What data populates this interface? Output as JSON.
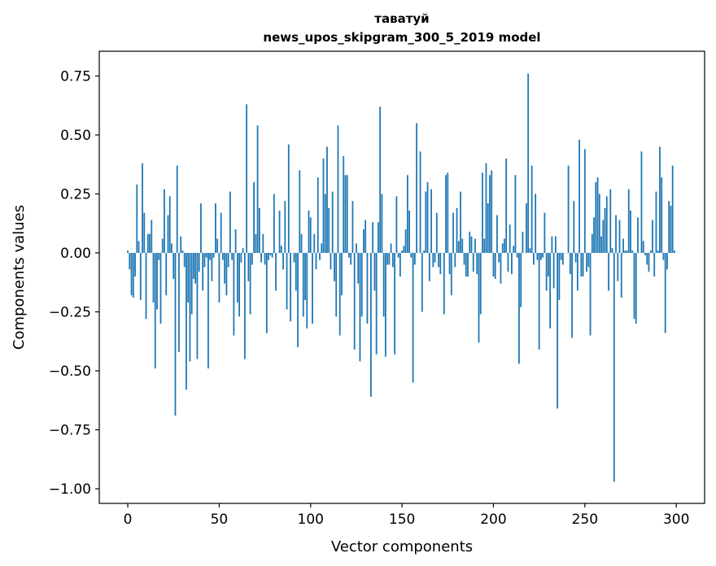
{
  "chart_data": {
    "type": "bar",
    "title": "таватуй",
    "subtitle": "news_upos_skipgram_300_5_2019 model",
    "xlabel": "Vector components",
    "ylabel": "Components values",
    "xlim": [
      -15.6,
      315.5
    ],
    "ylim": [
      -1.062,
      0.855
    ],
    "xticks": [
      0,
      50,
      100,
      150,
      200,
      250,
      300
    ],
    "xtick_labels": [
      "0",
      "50",
      "100",
      "150",
      "200",
      "250",
      "300"
    ],
    "yticks": [
      0.75,
      0.5,
      0.25,
      0,
      -0.25,
      -0.5,
      -0.75,
      -1.0
    ],
    "ytick_labels": [
      "0.75",
      "0.50",
      "0.25",
      "0.00",
      "−0.25",
      "−0.50",
      "−0.75",
      "−1.00"
    ],
    "grid": false,
    "color": "#1f77b4",
    "values": [
      0.01,
      -0.07,
      -0.18,
      -0.19,
      -0.1,
      0.29,
      0.05,
      -0.2,
      0.38,
      0.17,
      -0.28,
      0.08,
      0.08,
      0.14,
      -0.21,
      -0.49,
      -0.24,
      -0.03,
      -0.3,
      0.06,
      0.27,
      -0.18,
      0.16,
      0.24,
      0.04,
      -0.11,
      -0.69,
      0.37,
      -0.42,
      0.07,
      0.01,
      -0.06,
      -0.58,
      -0.21,
      -0.46,
      -0.26,
      -0.11,
      -0.13,
      -0.45,
      -0.08,
      0.21,
      -0.16,
      -0.06,
      -0.02,
      -0.49,
      -0.03,
      -0.12,
      -0.02,
      0.21,
      0.06,
      -0.21,
      0.17,
      -0.03,
      -0.13,
      -0.18,
      -0.06,
      0.26,
      -0.03,
      -0.35,
      0.1,
      -0.21,
      -0.27,
      -0.04,
      0.02,
      -0.45,
      0.63,
      -0.12,
      -0.26,
      -0.05,
      0.3,
      0.08,
      0.54,
      0.19,
      -0.04,
      0.08,
      -0.05,
      -0.34,
      -0.03,
      -0.01,
      -0.02,
      0.25,
      -0.16,
      0.0,
      0.18,
      0.03,
      -0.07,
      0.22,
      -0.24,
      0.46,
      -0.29,
      0.0,
      -0.04,
      -0.16,
      -0.4,
      0.35,
      0.08,
      -0.27,
      -0.2,
      -0.32,
      0.18,
      0.15,
      -0.3,
      0.08,
      -0.07,
      0.32,
      -0.03,
      0.04,
      0.4,
      0.25,
      0.45,
      0.19,
      -0.07,
      0.26,
      -0.12,
      -0.27,
      0.54,
      -0.35,
      -0.18,
      0.41,
      0.33,
      0.33,
      -0.02,
      -0.05,
      0.22,
      -0.41,
      0.04,
      -0.13,
      -0.46,
      -0.27,
      0.1,
      0.14,
      -0.3,
      0.0,
      -0.61,
      0.13,
      -0.16,
      -0.43,
      0.13,
      0.62,
      0.25,
      -0.27,
      -0.44,
      -0.05,
      -0.05,
      0.04,
      -0.06,
      -0.43,
      0.24,
      -0.02,
      -0.1,
      0.01,
      0.03,
      0.1,
      0.33,
      0.18,
      -0.02,
      -0.55,
      -0.05,
      0.55,
      0.0,
      0.43,
      -0.25,
      0.01,
      0.26,
      0.3,
      -0.12,
      0.27,
      -0.06,
      -0.04,
      0.17,
      -0.06,
      -0.09,
      0.0,
      -0.26,
      0.33,
      0.34,
      -0.09,
      -0.18,
      0.17,
      -0.06,
      0.19,
      0.05,
      0.26,
      0.06,
      -0.05,
      -0.1,
      -0.1,
      0.09,
      0.07,
      -0.08,
      0.06,
      -0.09,
      -0.38,
      -0.26,
      0.34,
      0.06,
      0.38,
      0.21,
      0.33,
      0.35,
      -0.1,
      -0.11,
      0.16,
      -0.04,
      -0.13,
      0.04,
      0.06,
      0.4,
      -0.08,
      0.12,
      -0.09,
      0.03,
      0.33,
      -0.02,
      -0.47,
      -0.23,
      0.09,
      0.0,
      0.21,
      0.76,
      0.02,
      0.37,
      -0.05,
      0.25,
      -0.03,
      -0.41,
      -0.03,
      -0.02,
      0.17,
      -0.16,
      -0.1,
      -0.32,
      0.07,
      -0.15,
      0.07,
      -0.66,
      -0.2,
      -0.03,
      -0.05,
      0.0,
      0.0,
      0.37,
      -0.09,
      -0.36,
      0.22,
      -0.04,
      -0.16,
      0.48,
      -0.1,
      -0.1,
      0.44,
      -0.08,
      -0.06,
      -0.35,
      0.08,
      0.15,
      0.3,
      0.32,
      0.25,
      0.07,
      0.14,
      0.19,
      0.24,
      -0.16,
      0.27,
      0.02,
      -0.97,
      0.16,
      -0.12,
      0.14,
      -0.19,
      0.06,
      0.01,
      0.01,
      0.27,
      0.18,
      0.01,
      -0.28,
      -0.3,
      0.15,
      0.0,
      0.43,
      0.05,
      -0.01,
      -0.05,
      -0.08,
      0.01,
      0.14,
      -0.1,
      0.26,
      0.01,
      0.45,
      0.32,
      -0.03,
      -0.34,
      -0.07,
      0.22,
      0.2,
      0.37,
      0.01
    ]
  }
}
